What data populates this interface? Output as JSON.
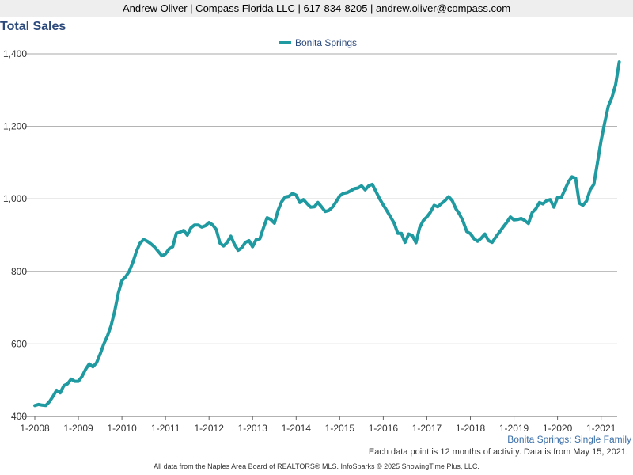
{
  "header": {
    "contact": "Andrew Oliver | Compass Florida LLC | 617-834-8205 | andrew.oliver@compass.com"
  },
  "colors": {
    "series": "#1f9aa0",
    "title": "#2c4a7c",
    "grid": "#aaaaaa"
  },
  "chart_data": {
    "type": "line",
    "title": "Total Sales",
    "subtitle": "Bonita Springs: Single Family",
    "note": "Each data point is 12 months of activity. Data is from May 15, 2021.",
    "xlabel": "",
    "ylabel": "",
    "ylim": [
      400,
      1400
    ],
    "yticks": [
      400,
      600,
      800,
      1000,
      1200,
      1400
    ],
    "ytick_labels": [
      "400",
      "600",
      "800",
      "1,000",
      "1,200",
      "1,400"
    ],
    "xticks": [
      "1-2008",
      "1-2009",
      "1-2010",
      "1-2011",
      "1-2012",
      "1-2013",
      "1-2014",
      "1-2015",
      "1-2016",
      "1-2017",
      "1-2018",
      "1-2019",
      "1-2020",
      "1-2021"
    ],
    "x_start": "1-2008",
    "grid": true,
    "legend_position": "top-center",
    "series": [
      {
        "name": "Bonita Springs",
        "values": [
          430,
          433,
          431,
          430,
          440,
          455,
          472,
          465,
          485,
          490,
          503,
          497,
          497,
          510,
          530,
          545,
          537,
          548,
          572,
          600,
          622,
          650,
          690,
          740,
          775,
          785,
          800,
          825,
          855,
          878,
          888,
          883,
          876,
          867,
          855,
          843,
          848,
          862,
          868,
          905,
          908,
          913,
          900,
          920,
          928,
          928,
          922,
          926,
          935,
          928,
          915,
          878,
          870,
          880,
          897,
          875,
          858,
          865,
          880,
          885,
          868,
          888,
          890,
          920,
          948,
          943,
          933,
          968,
          992,
          1005,
          1007,
          1015,
          1010,
          990,
          998,
          987,
          977,
          978,
          990,
          978,
          965,
          968,
          977,
          992,
          1008,
          1015,
          1017,
          1022,
          1028,
          1030,
          1036,
          1025,
          1036,
          1040,
          1020,
          1000,
          983,
          967,
          950,
          933,
          905,
          905,
          880,
          903,
          899,
          879,
          920,
          940,
          950,
          963,
          982,
          978,
          987,
          995,
          1006,
          995,
          973,
          958,
          938,
          910,
          904,
          890,
          883,
          892,
          903,
          885,
          880,
          895,
          908,
          922,
          935,
          950,
          942,
          943,
          946,
          940,
          932,
          962,
          972,
          990,
          986,
          995,
          998,
          977,
          1004,
          1003,
          1025,
          1047,
          1061,
          1057,
          988,
          982,
          994,
          1025,
          1040,
          1100,
          1160,
          1210,
          1256,
          1280,
          1315,
          1378
        ]
      }
    ]
  },
  "footer": "All data from the Naples Area Board of REALTORS® MLS. InfoSparks © 2025 ShowingTime Plus, LLC."
}
